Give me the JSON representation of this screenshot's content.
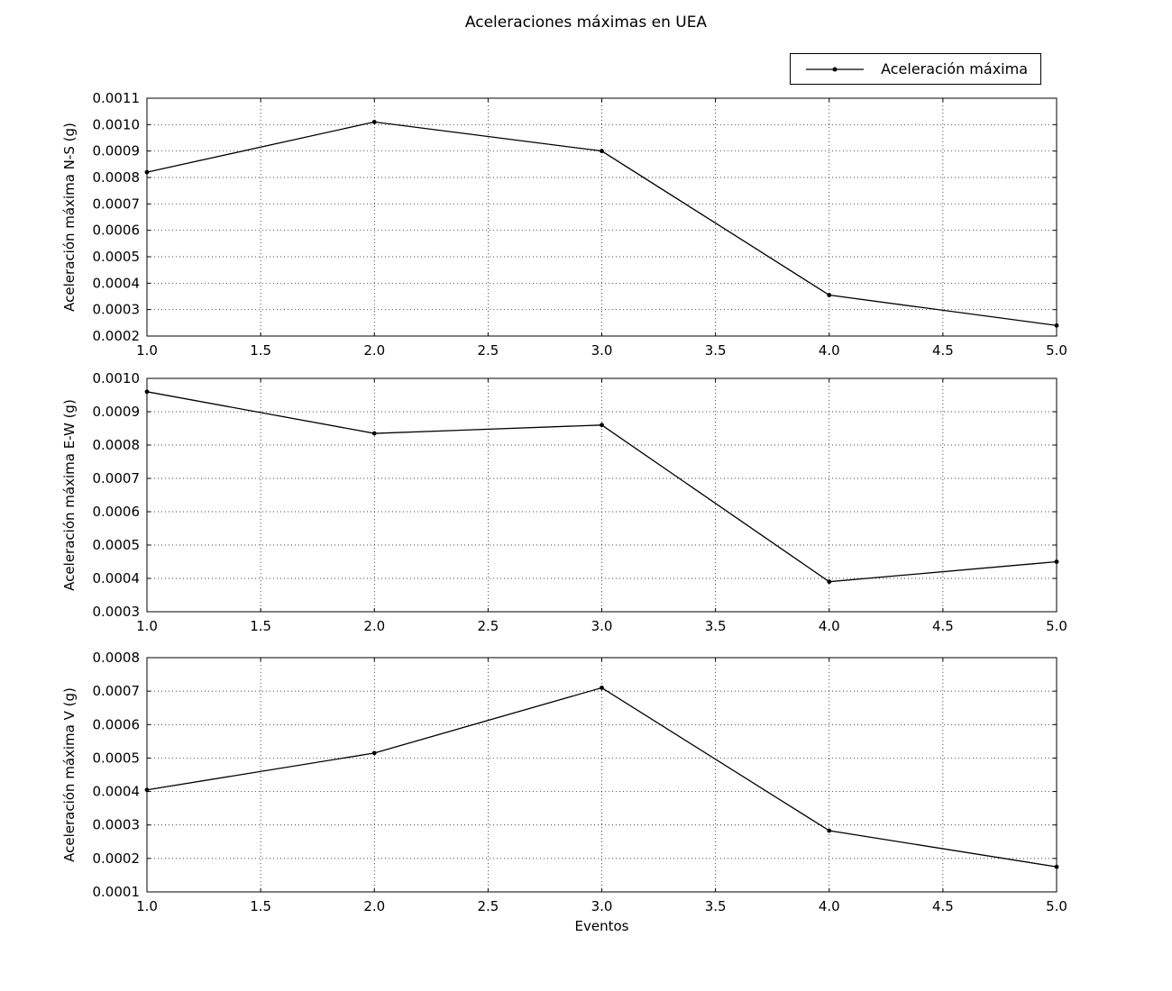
{
  "figure": {
    "title": "Aceleraciones máximas en UEA",
    "xlabel": "Eventos",
    "background_color": "#ffffff",
    "line_color": "#000000"
  },
  "legend": {
    "label": "Aceleración máxima",
    "position": "upper-right",
    "marker": "dot-on-line"
  },
  "chart_data": [
    {
      "type": "line",
      "name": "aceleracion-maxima-ns",
      "title": "",
      "xlabel": "",
      "ylabel": "Aceleración máxima N-S (g)",
      "x": [
        1.0,
        2.0,
        3.0,
        4.0,
        5.0
      ],
      "series": [
        {
          "name": "Aceleración máxima",
          "values": [
            0.00082,
            0.00101,
            0.0009,
            0.000355,
            0.00024
          ]
        }
      ],
      "xlim": [
        1.0,
        5.0
      ],
      "ylim": [
        0.0002,
        0.0011
      ],
      "xticks": {
        "values": [
          1.0,
          1.5,
          2.0,
          2.5,
          3.0,
          3.5,
          4.0,
          4.5,
          5.0
        ],
        "labels": [
          "1.0",
          "1.5",
          "2.0",
          "2.5",
          "3.0",
          "3.5",
          "4.0",
          "4.5",
          "5.0"
        ]
      },
      "yticks": {
        "values": [
          0.0002,
          0.0003,
          0.0004,
          0.0005,
          0.0006,
          0.0007,
          0.0008,
          0.0009,
          0.001,
          0.0011
        ],
        "labels": [
          "0.0002",
          "0.0003",
          "0.0004",
          "0.0005",
          "0.0006",
          "0.0007",
          "0.0008",
          "0.0009",
          "0.0010",
          "0.0011"
        ]
      },
      "grid": true
    },
    {
      "type": "line",
      "name": "aceleracion-maxima-ew",
      "title": "",
      "xlabel": "",
      "ylabel": "Aceleración máxima E-W (g)",
      "x": [
        1.0,
        2.0,
        3.0,
        4.0,
        5.0
      ],
      "series": [
        {
          "name": "Aceleración máxima",
          "values": [
            0.00096,
            0.000835,
            0.00086,
            0.00039,
            0.00045
          ]
        }
      ],
      "xlim": [
        1.0,
        5.0
      ],
      "ylim": [
        0.0003,
        0.001
      ],
      "xticks": {
        "values": [
          1.0,
          1.5,
          2.0,
          2.5,
          3.0,
          3.5,
          4.0,
          4.5,
          5.0
        ],
        "labels": [
          "1.0",
          "1.5",
          "2.0",
          "2.5",
          "3.0",
          "3.5",
          "4.0",
          "4.5",
          "5.0"
        ]
      },
      "yticks": {
        "values": [
          0.0003,
          0.0004,
          0.0005,
          0.0006,
          0.0007,
          0.0008,
          0.0009,
          0.001
        ],
        "labels": [
          "0.0003",
          "0.0004",
          "0.0005",
          "0.0006",
          "0.0007",
          "0.0008",
          "0.0009",
          "0.0010"
        ]
      },
      "grid": true
    },
    {
      "type": "line",
      "name": "aceleracion-maxima-v",
      "title": "",
      "xlabel": "Eventos",
      "ylabel": "Aceleración máxima V (g)",
      "x": [
        1.0,
        2.0,
        3.0,
        4.0,
        5.0
      ],
      "series": [
        {
          "name": "Aceleración máxima",
          "values": [
            0.000405,
            0.000515,
            0.00071,
            0.000283,
            0.000175
          ]
        }
      ],
      "xlim": [
        1.0,
        5.0
      ],
      "ylim": [
        0.0001,
        0.0008
      ],
      "xticks": {
        "values": [
          1.0,
          1.5,
          2.0,
          2.5,
          3.0,
          3.5,
          4.0,
          4.5,
          5.0
        ],
        "labels": [
          "1.0",
          "1.5",
          "2.0",
          "2.5",
          "3.0",
          "3.5",
          "4.0",
          "4.5",
          "5.0"
        ]
      },
      "yticks": {
        "values": [
          0.0001,
          0.0002,
          0.0003,
          0.0004,
          0.0005,
          0.0006,
          0.0007,
          0.0008
        ],
        "labels": [
          "0.0001",
          "0.0002",
          "0.0003",
          "0.0004",
          "0.0005",
          "0.0006",
          "0.0007",
          "0.0008"
        ]
      },
      "grid": true
    }
  ]
}
